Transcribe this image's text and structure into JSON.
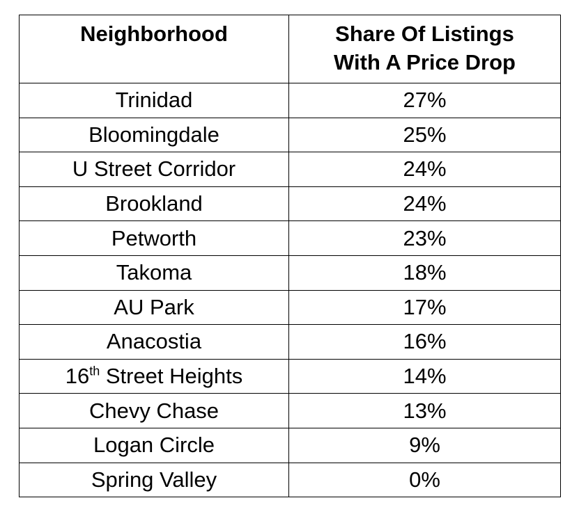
{
  "table": {
    "headers": {
      "neighborhood": "Neighborhood",
      "share_line1": "Share Of Listings",
      "share_line2": "With A Price Drop"
    },
    "rows": [
      {
        "neighborhood": "Trinidad",
        "share": "27%"
      },
      {
        "neighborhood": "Bloomingdale",
        "share": "25%"
      },
      {
        "neighborhood": "U Street Corridor",
        "share": "24%"
      },
      {
        "neighborhood": "Brookland",
        "share": "24%"
      },
      {
        "neighborhood": "Petworth",
        "share": "23%"
      },
      {
        "neighborhood": "Takoma",
        "share": "18%"
      },
      {
        "neighborhood": "AU Park",
        "share": "17%"
      },
      {
        "neighborhood": "Anacostia",
        "share": "16%"
      },
      {
        "neighborhood_prefix": "16",
        "neighborhood_sup": "th",
        "neighborhood_suffix": " Street Heights",
        "share": "14%"
      },
      {
        "neighborhood": "Chevy Chase",
        "share": "13%"
      },
      {
        "neighborhood": "Logan Circle",
        "share": "9%"
      },
      {
        "neighborhood": "Spring Valley",
        "share": "0%"
      }
    ]
  }
}
